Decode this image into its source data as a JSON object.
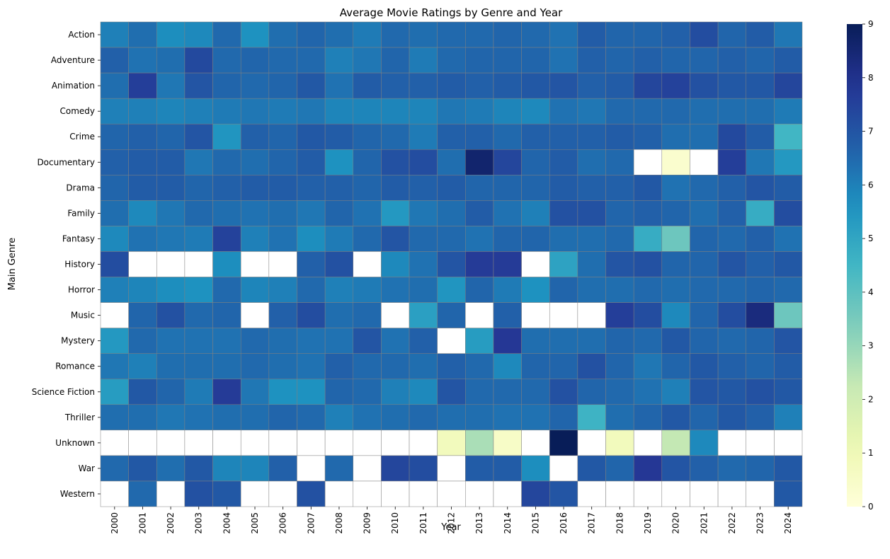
{
  "chart_data": {
    "type": "heatmap",
    "title": "Average Movie Ratings by Genre and Year",
    "xlabel": "Year",
    "ylabel": "Main Genre",
    "x": [
      "2000",
      "2001",
      "2002",
      "2003",
      "2004",
      "2005",
      "2006",
      "2007",
      "2008",
      "2009",
      "2010",
      "2011",
      "2012",
      "2013",
      "2014",
      "2015",
      "2016",
      "2017",
      "2018",
      "2019",
      "2020",
      "2021",
      "2022",
      "2023",
      "2024"
    ],
    "y": [
      "Action",
      "Adventure",
      "Animation",
      "Comedy",
      "Crime",
      "Documentary",
      "Drama",
      "Family",
      "Fantasy",
      "History",
      "Horror",
      "Music",
      "Mystery",
      "Romance",
      "Science Fiction",
      "Thriller",
      "Unknown",
      "War",
      "Western"
    ],
    "values": [
      [
        6.0,
        6.4,
        5.7,
        5.8,
        6.5,
        5.6,
        6.4,
        6.6,
        6.4,
        6.1,
        6.5,
        6.4,
        6.5,
        6.5,
        6.6,
        6.5,
        6.3,
        6.8,
        6.6,
        6.6,
        6.7,
        7.2,
        6.6,
        6.8,
        6.2
      ],
      [
        6.7,
        6.3,
        6.4,
        7.3,
        6.5,
        6.6,
        6.5,
        6.5,
        6.0,
        6.2,
        6.6,
        6.1,
        6.5,
        6.6,
        6.6,
        6.6,
        6.3,
        6.7,
        6.6,
        6.7,
        6.6,
        6.6,
        6.7,
        6.6,
        6.8
      ],
      [
        6.4,
        7.6,
        6.2,
        7.0,
        6.6,
        6.5,
        6.6,
        6.9,
        6.3,
        6.8,
        6.7,
        6.7,
        6.8,
        6.7,
        6.8,
        6.9,
        7.0,
        6.7,
        6.8,
        7.4,
        7.5,
        7.1,
        6.9,
        6.9,
        7.4
      ],
      [
        6.0,
        6.0,
        5.9,
        6.0,
        6.1,
        6.2,
        6.1,
        6.2,
        5.9,
        5.9,
        5.9,
        5.9,
        6.2,
        6.1,
        5.9,
        5.8,
        6.3,
        6.2,
        6.5,
        6.5,
        6.5,
        6.4,
        6.4,
        6.4,
        6.1
      ],
      [
        6.6,
        6.7,
        6.6,
        7.0,
        5.5,
        6.7,
        6.6,
        6.9,
        6.8,
        6.6,
        6.5,
        6.1,
        6.7,
        6.7,
        6.5,
        6.7,
        6.7,
        6.7,
        6.8,
        6.7,
        6.4,
        6.4,
        7.3,
        6.8,
        4.5
      ],
      [
        6.7,
        6.8,
        6.8,
        6.2,
        6.5,
        6.4,
        6.6,
        6.8,
        5.6,
        6.6,
        7.1,
        7.2,
        6.4,
        8.6,
        7.4,
        6.6,
        6.8,
        6.4,
        6.5,
        null,
        0.3,
        null,
        7.6,
        6.2,
        5.4
      ],
      [
        6.6,
        6.8,
        6.8,
        6.6,
        6.7,
        6.8,
        6.8,
        6.7,
        6.7,
        6.6,
        6.8,
        6.7,
        6.8,
        6.6,
        6.6,
        6.6,
        6.8,
        6.7,
        6.7,
        6.9,
        6.3,
        6.5,
        6.7,
        7.0,
        6.8
      ],
      [
        6.4,
        5.8,
        6.2,
        6.5,
        6.4,
        6.3,
        6.4,
        6.2,
        6.6,
        6.3,
        5.4,
        6.2,
        6.4,
        6.8,
        6.3,
        6.0,
        7.1,
        7.1,
        6.6,
        6.7,
        6.6,
        6.4,
        6.7,
        4.8,
        7.2
      ],
      [
        5.8,
        6.3,
        6.2,
        6.1,
        7.5,
        6.0,
        6.3,
        5.7,
        6.1,
        6.5,
        7.0,
        6.5,
        6.5,
        6.3,
        6.6,
        6.6,
        6.4,
        6.4,
        6.5,
        4.8,
        3.7,
        6.6,
        6.5,
        6.7,
        6.3
      ],
      [
        7.2,
        null,
        null,
        null,
        5.7,
        null,
        null,
        6.7,
        7.1,
        null,
        5.8,
        6.3,
        7.0,
        7.7,
        7.7,
        null,
        5.1,
        6.4,
        7.0,
        7.1,
        6.6,
        6.6,
        7.0,
        6.7,
        6.9
      ],
      [
        6.0,
        5.9,
        5.7,
        5.6,
        6.5,
        5.9,
        6.0,
        6.5,
        6.0,
        6.1,
        6.3,
        6.4,
        5.5,
        6.6,
        6.1,
        5.6,
        6.6,
        6.4,
        6.4,
        6.5,
        6.4,
        6.5,
        6.5,
        6.6,
        6.5
      ],
      [
        null,
        6.6,
        7.1,
        6.5,
        6.6,
        null,
        6.7,
        7.2,
        6.4,
        6.5,
        null,
        5.2,
        6.6,
        null,
        6.7,
        null,
        null,
        null,
        7.6,
        7.2,
        5.8,
        6.6,
        7.2,
        8.3,
        3.7
      ],
      [
        5.4,
        6.5,
        6.3,
        6.3,
        6.3,
        6.5,
        6.4,
        6.3,
        6.3,
        7.0,
        6.3,
        6.7,
        null,
        5.3,
        7.8,
        6.4,
        6.4,
        6.4,
        6.6,
        6.5,
        6.9,
        6.6,
        6.5,
        6.6,
        7.0
      ],
      [
        6.2,
        6.0,
        6.4,
        6.4,
        6.4,
        6.5,
        6.4,
        6.3,
        6.7,
        6.5,
        6.5,
        6.4,
        6.7,
        6.5,
        5.8,
        6.6,
        6.6,
        7.1,
        6.6,
        6.2,
        6.6,
        6.9,
        6.7,
        6.6,
        6.8
      ],
      [
        5.3,
        6.9,
        6.6,
        6.1,
        7.7,
        6.2,
        5.6,
        5.6,
        6.6,
        6.5,
        6.0,
        5.8,
        7.0,
        6.5,
        6.5,
        6.5,
        7.1,
        6.6,
        6.5,
        6.3,
        6.0,
        7.0,
        6.9,
        7.1,
        6.9
      ],
      [
        6.4,
        6.4,
        6.2,
        6.3,
        6.4,
        6.4,
        6.6,
        6.5,
        6.0,
        6.3,
        6.4,
        6.5,
        6.4,
        6.4,
        6.3,
        6.3,
        6.6,
        4.6,
        6.4,
        6.6,
        6.9,
        6.6,
        6.9,
        6.7,
        6.0
      ],
      [
        null,
        null,
        null,
        null,
        null,
        null,
        null,
        null,
        null,
        null,
        null,
        null,
        0.8,
        2.7,
        0.5,
        null,
        9.0,
        null,
        0.8,
        null,
        2.3,
        5.8,
        null,
        null,
        null
      ],
      [
        6.5,
        6.9,
        6.4,
        6.9,
        5.9,
        5.9,
        6.7,
        null,
        6.5,
        null,
        7.4,
        7.2,
        null,
        6.8,
        6.8,
        5.7,
        null,
        6.9,
        6.6,
        7.8,
        7.0,
        6.7,
        6.5,
        6.6,
        6.9
      ],
      [
        null,
        6.5,
        null,
        7.1,
        6.9,
        null,
        null,
        7.1,
        null,
        null,
        null,
        null,
        null,
        null,
        null,
        7.4,
        7.0,
        null,
        null,
        null,
        null,
        null,
        null,
        null,
        6.9
      ]
    ],
    "vmin": 0,
    "vmax": 9,
    "colorbar_ticks": [
      "0",
      "1",
      "2",
      "3",
      "4",
      "5",
      "6",
      "7",
      "8",
      "9"
    ],
    "colormap": "YlGnBu",
    "cell_border_color": "#808080",
    "missing_color": "#ffffff",
    "grid": false
  }
}
